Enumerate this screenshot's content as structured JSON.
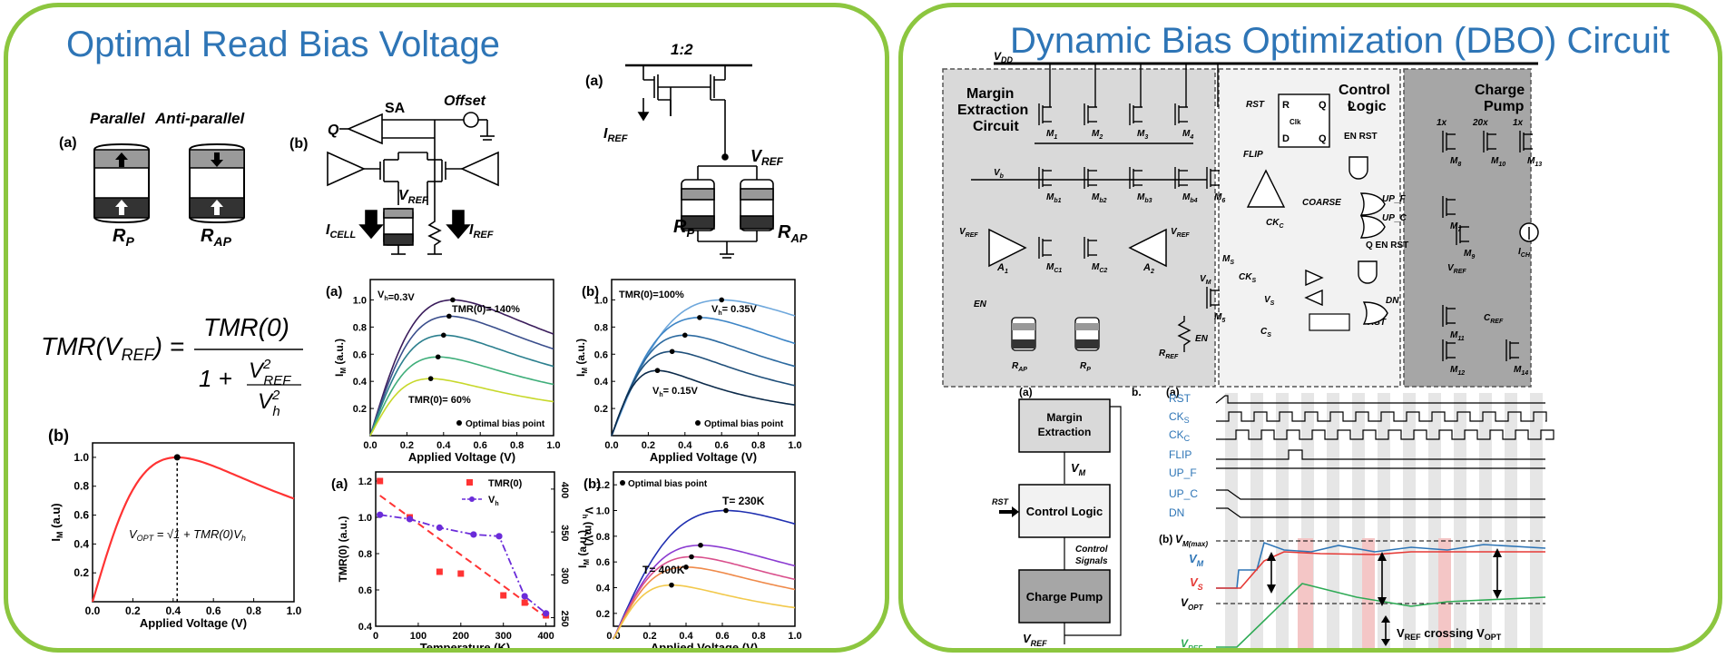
{
  "left": {
    "title": "Optimal Read Bias Voltage",
    "mtj": {
      "tag_a": "(a)",
      "parallel": "Parallel",
      "antiparallel": "Anti-parallel",
      "rp": "R",
      "rp_sub": "P",
      "rap": "R",
      "rap_sub": "AP"
    },
    "formula": {
      "lhs": "TMR(V",
      "lhs_sub": "REF",
      "lhs_end": ") =",
      "numerator": "TMR(0)",
      "den_one": "1 +",
      "den_num": "V",
      "den_num_sup": "2",
      "den_num_sub": "REF",
      "den_den": "V",
      "den_den_sup": "2",
      "den_den_sub": "h"
    },
    "plot_b": {
      "tag": "(b)",
      "xlabel": "Applied Voltage (V)",
      "ylabel": "I",
      "ylabel_sub": "M",
      "ylabel_end": " (a.u)",
      "xticks": [
        "0.0",
        "0.2",
        "0.4",
        "0.6",
        "0.8",
        "1.0"
      ],
      "yticks": [
        "0.2",
        "0.4",
        "0.6",
        "0.8",
        "1.0"
      ],
      "annotation": "V_OPT = √(1 + TMR(0)) V_h",
      "annot_v": "V",
      "annot_sub": "OPT",
      "annot_eq": " = √1 + TMR(0)V",
      "annot_h": "h"
    },
    "circuit_sa": {
      "tag": "(b)",
      "q": "Q",
      "sa": "SA",
      "offset": "Offset",
      "vref": "V",
      "vref_sub": "REF",
      "icell": "I",
      "icell_sub": "CELL",
      "iref": "I",
      "iref_sub": "REF"
    },
    "circuit_ref": {
      "tag": "(a)",
      "ratio": "1:2",
      "iref": "I",
      "iref_sub": "REF",
      "vref": "V",
      "vref_sub": "REF",
      "rp": "R",
      "rp_sub": "P",
      "rap": "R",
      "rap_sub": "AP"
    },
    "plot_tmr_a": {
      "tag": "(a)",
      "vh_label": "V",
      "vh_sub": "h",
      "vh_val": "=0.3V",
      "top_label": "TMR(0)= 140%",
      "bottom_label": "TMR(0)= 60%",
      "legend": "Optimal bias point",
      "xlabel": "Applied Voltage (V)",
      "ylabel": "I",
      "ylabel_sub": "M",
      "ylabel_end": " (a.u.)",
      "xticks": [
        "0.0",
        "0.2",
        "0.4",
        "0.6",
        "0.8",
        "1.0"
      ],
      "yticks": [
        "0.2",
        "0.4",
        "0.6",
        "0.8",
        "1.0"
      ]
    },
    "plot_vh_b": {
      "tag": "(b)",
      "tmr_label": "TMR(0)=100%",
      "top_label_v": "V",
      "top_label_sub": "h",
      "top_label_val": "= 0.35V",
      "bottom_label_v": "V",
      "bottom_label_sub": "h",
      "bottom_label_val": "= 0.15V",
      "legend": "Optimal bias point",
      "xlabel": "Applied Voltage (V)",
      "ylabel": "I",
      "ylabel_sub": "M",
      "ylabel_end": " (a.u.)",
      "xticks": [
        "0.0",
        "0.2",
        "0.4",
        "0.6",
        "0.8",
        "1.0"
      ],
      "yticks": [
        "0.2",
        "0.4",
        "0.6",
        "0.8",
        "1.0"
      ]
    },
    "plot_temp": {
      "tag": "(a)",
      "legend_tmr": "TMR(0)",
      "legend_vh": "V",
      "legend_vh_sub": "h",
      "xlabel": "Temperature (K)",
      "ylabel": "TMR(0) (a.u.)",
      "y2label": "V",
      "y2label_sub": "h",
      "y2label_end": " (mV)",
      "xticks": [
        "0",
        "100",
        "200",
        "300",
        "400"
      ],
      "yticks": [
        "0.4",
        "0.6",
        "0.8",
        "1.0",
        "1.2"
      ],
      "y2ticks": [
        "250",
        "300",
        "350",
        "400"
      ]
    },
    "plot_temp_b": {
      "tag": "(b)",
      "legend": "Optimal bias point",
      "top_label": "T= 230K",
      "bottom_label": "T= 400K",
      "xlabel": "Applied Voltage (V)",
      "ylabel": "I",
      "ylabel_sub": "M",
      "ylabel_end": " (a.u.)",
      "xticks": [
        "0.0",
        "0.2",
        "0.4",
        "0.6",
        "0.8",
        "1.0"
      ],
      "yticks": [
        "0.2",
        "0.4",
        "0.6",
        "0.8",
        "1.0",
        "1.2"
      ]
    }
  },
  "right": {
    "title": "Dynamic Bias Optimization (DBO) Circuit",
    "vdd": "V",
    "vdd_sub": "DD",
    "sections": {
      "margin": [
        "Margin",
        "Extraction",
        "Circuit"
      ],
      "control": [
        "Control",
        "Logic"
      ],
      "charge": [
        "Charge",
        "Pump"
      ]
    },
    "transistors": [
      "M",
      "1",
      "M",
      "2",
      "M",
      "3",
      "M",
      "4",
      "M",
      "b1",
      "M",
      "b2",
      "M",
      "b3",
      "M",
      "b4",
      "M",
      "6",
      "M",
      "C1",
      "M",
      "C2",
      "M",
      "5",
      "M",
      "8",
      "M",
      "10",
      "M",
      "13",
      "M",
      "7",
      "M",
      "9",
      "M",
      "11",
      "M",
      "12",
      "M",
      "14"
    ],
    "labels": {
      "vb": "V",
      "vb_sub": "b",
      "vref": "V",
      "vref_sub": "REF",
      "a1": "A",
      "a1_sub": "1",
      "a2": "A",
      "a2_sub": "2",
      "en": "EN",
      "rap": "R",
      "rap_sub": "AP",
      "rp": "R",
      "rp_sub": "P",
      "rref": "R",
      "rref_sub": "REF",
      "vm": "V",
      "vm_sub": "M",
      "ms": "M",
      "ms_sub": "S",
      "cks": "CK",
      "cks_sub": "S",
      "vs": "V",
      "vs_sub": "S",
      "cs": "C",
      "cs_sub": "S",
      "flip": "FLIP",
      "ckc": "CK",
      "ckc_sub": "C",
      "rst": "RST",
      "r": "R",
      "q": "Q",
      "clk": "Clk",
      "d": "D",
      "qbar": "Q",
      "enrst": "EN RST",
      "coarse": "COARSE",
      "upf": "UP_F",
      "upc": "UP_C",
      "dn": "DN",
      "ich": "I",
      "ich_sub": "CH",
      "cref": "C",
      "cref_sub": "REF",
      "x1": "1x",
      "x20": "20x",
      "x1b": "1x"
    },
    "block": {
      "tag_a": "(a)",
      "tag_b": "b.",
      "margin": [
        "Margin",
        "Extraction"
      ],
      "vm": "V",
      "vm_sub": "M",
      "rst": "RST",
      "control": "Control Logic",
      "signals": [
        "Control",
        "Signals"
      ],
      "charge": "Charge Pump",
      "vref": "V",
      "vref_sub": "REF"
    },
    "timing": {
      "tag_a": "(a)",
      "tag_b": "(b)",
      "signals": [
        "RST",
        "CK",
        "CK",
        "FLIP",
        "UP_F",
        "UP_C",
        "DN"
      ],
      "signal_subs": [
        "",
        "S",
        "C",
        "",
        "",
        "",
        ""
      ],
      "vmmax": "V",
      "vmmax_sub": "M(max)",
      "vm": "V",
      "vm_sub": "M",
      "vs": "V",
      "vs_sub": "S",
      "vopt": "V",
      "vopt_sub": "OPT",
      "vref": "V",
      "vref_sub": "REF",
      "crossing_v": "V",
      "crossing_sub": "REF",
      "crossing_mid": " crossing ",
      "crossing_v2": "V",
      "crossing_sub2": "OPT"
    }
  },
  "chart_data": [
    {
      "type": "line",
      "title": "",
      "xlabel": "Applied Voltage (V)",
      "ylabel": "IM (a.u)",
      "xlim": [
        0,
        1.0
      ],
      "ylim": [
        0,
        1.1
      ],
      "series": [
        {
          "x": [
            0.0,
            0.1,
            0.2,
            0.3,
            0.42,
            0.6,
            0.8,
            1.0
          ],
          "y": [
            0.0,
            0.45,
            0.78,
            0.95,
            1.0,
            0.95,
            0.84,
            0.71
          ]
        }
      ],
      "annotation": "V_OPT = sqrt(1+TMR(0)) V_h at 0.42"
    },
    {
      "type": "line",
      "xlabel": "Applied Voltage (V)",
      "ylabel": "IM (a.u.)",
      "xlim": [
        0,
        1.0
      ],
      "ylim": [
        0,
        1.15
      ],
      "peaks": [
        [
          0.45,
          1.0
        ],
        [
          0.43,
          0.88
        ],
        [
          0.4,
          0.74
        ],
        [
          0.37,
          0.58
        ],
        [
          0.33,
          0.42
        ]
      ]
    },
    {
      "type": "line",
      "xlabel": "Applied Voltage (V)",
      "ylabel": "IM (a.u.)",
      "xlim": [
        0,
        1.0
      ],
      "ylim": [
        0,
        1.15
      ],
      "peaks": [
        [
          0.6,
          1.0
        ],
        [
          0.48,
          0.87
        ],
        [
          0.4,
          0.74
        ],
        [
          0.33,
          0.62
        ],
        [
          0.25,
          0.48
        ]
      ]
    },
    {
      "type": "scatter",
      "xlabel": "Temperature (K)",
      "ylabel": "TMR(0) (a.u.)",
      "y2label": "Vh (mV)",
      "xlim": [
        0,
        420
      ],
      "ylim": [
        0.4,
        1.25
      ],
      "y2lim": [
        240,
        420
      ],
      "series": [
        {
          "name": "TMR(0)",
          "x": [
            10,
            80,
            150,
            200,
            300,
            350,
            400
          ],
          "y": [
            1.2,
            1.0,
            0.7,
            0.69,
            0.57,
            0.53,
            0.46
          ]
        },
        {
          "name": "Vh",
          "x": [
            10,
            80,
            150,
            230,
            290,
            350,
            400
          ],
          "y": [
            370,
            365,
            355,
            347,
            345,
            275,
            255
          ]
        }
      ]
    },
    {
      "type": "line",
      "xlabel": "Applied Voltage (V)",
      "ylabel": "IM (a.u.)",
      "xlim": [
        0,
        1.0
      ],
      "ylim": [
        0.1,
        1.3
      ],
      "peaks": [
        [
          0.62,
          1.0
        ],
        [
          0.48,
          0.73
        ],
        [
          0.43,
          0.64
        ],
        [
          0.4,
          0.56
        ],
        [
          0.32,
          0.42
        ]
      ]
    }
  ]
}
